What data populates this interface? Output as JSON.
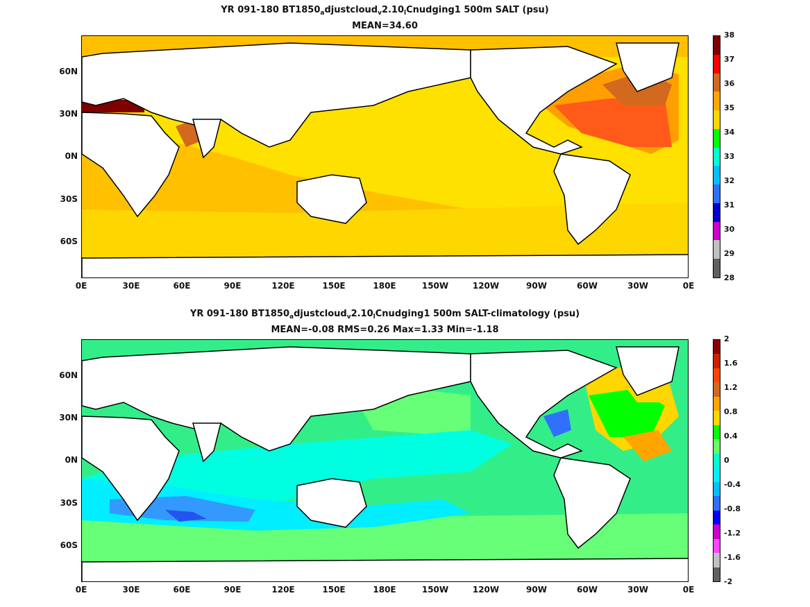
{
  "panel1": {
    "title_parts": [
      "YR 091-180 BT1850",
      "a",
      "djustcloud",
      "v",
      "2.10",
      "l",
      "Cnudging1 500m SALT (psu)"
    ],
    "subtitle": "MEAN=34.60",
    "lat_labels": [
      "60N",
      "30N",
      "0N",
      "30S",
      "60S"
    ],
    "lon_labels": [
      "0E",
      "30E",
      "60E",
      "90E",
      "120E",
      "150E",
      "180E",
      "150W",
      "120W",
      "90W",
      "60W",
      "30W",
      "0E"
    ],
    "colorbar_labels": [
      "38",
      "37",
      "36",
      "35",
      "34",
      "33",
      "32",
      "31",
      "30",
      "29",
      "28"
    ],
    "colorbar_colors": [
      "#7f0000",
      "#ff0000",
      "#d2691e",
      "#ffa500",
      "#ffd700",
      "#00ff00",
      "#00ffcc",
      "#00bfff",
      "#3070ff",
      "#0000cc",
      "#cc00cc",
      "#c0c0c0",
      "#606060"
    ]
  },
  "panel2": {
    "title_parts": [
      "YR 091-180 BT1850",
      "a",
      "djustcloud",
      "v",
      "2.10",
      "l",
      "Cnudging1 500m SALT-climatology (psu)"
    ],
    "subtitle": "MEAN=-0.08   RMS=0.26   Max=1.33   Min=-1.18",
    "lat_labels": [
      "60N",
      "30N",
      "0N",
      "30S",
      "60S"
    ],
    "lon_labels": [
      "0E",
      "30E",
      "60E",
      "90E",
      "120E",
      "150E",
      "180E",
      "150W",
      "120W",
      "90W",
      "60W",
      "30W",
      "0E"
    ],
    "colorbar_labels": [
      "2",
      "1.6",
      "1.2",
      "0.8",
      "0.4",
      "0",
      "-0.4",
      "-0.8",
      "-1.2",
      "-1.6",
      "-2"
    ],
    "colorbar_colors": [
      "#8b0000",
      "#cc2200",
      "#ff4500",
      "#d2691e",
      "#ffa500",
      "#ffd700",
      "#00ff00",
      "#66ff66",
      "#00ffcc",
      "#00eeff",
      "#00bfff",
      "#3070ff",
      "#0000ff",
      "#cc00cc",
      "#ff44ff",
      "#c0c0c0",
      "#606060"
    ]
  }
}
